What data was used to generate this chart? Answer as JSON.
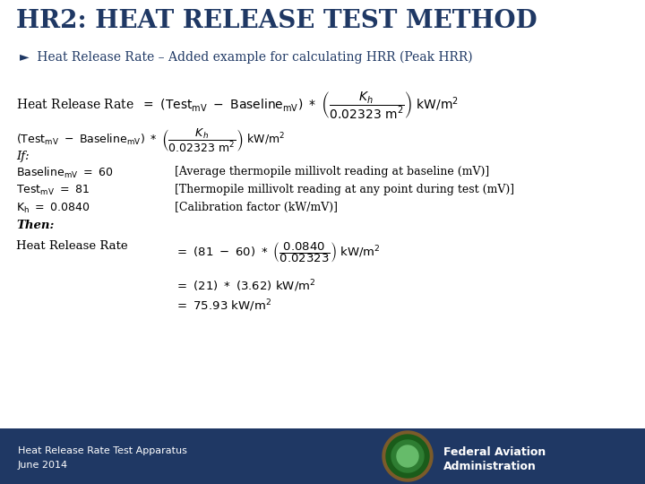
{
  "title": "HR2: HEAT RELEASE TEST METHOD",
  "title_color": "#1F3864",
  "bullet": "►  Heat Release Rate – Added example for calculating HRR (Peak HRR)",
  "bullet_color": "#1F3864",
  "bg_color": "#FFFFFF",
  "footer_bg": "#1F3864",
  "footer_left_line1": "Heat Release Rate Test Apparatus",
  "footer_left_line2": "June 2014",
  "footer_right_line1": "Federal Aviation",
  "footer_right_line2": "Administration",
  "footer_text_color": "#FFFFFF",
  "main_text_color": "#000000"
}
